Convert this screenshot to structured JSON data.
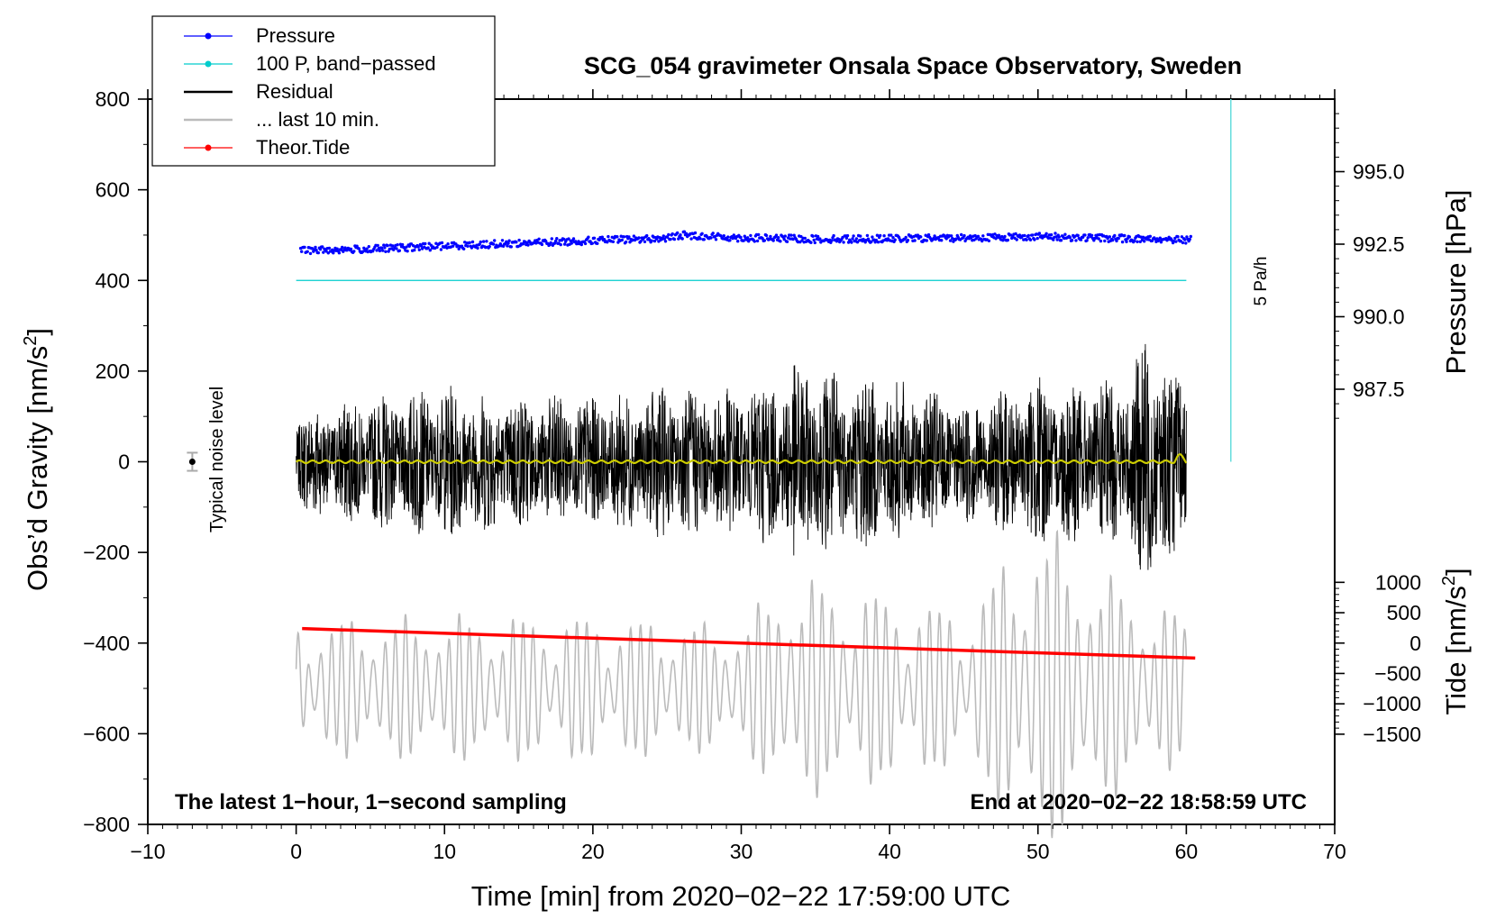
{
  "chart_data": {
    "type": "line",
    "title": "SCG_054 gravimeter Onsala Space Observatory, Sweden",
    "xlabel": "Time [min] from 2020−02−22 17:59:00 UTC",
    "ylabel_left": "Obs’d Gravity [nm/s",
    "ylabel_left_sup": "2",
    "ylabel_left_end": "]",
    "ylabel_right_pressure": "Pressure [hPa]",
    "ylabel_right_tide": "Tide [nm/s",
    "ylabel_right_tide_sup": "2",
    "ylabel_right_tide_end": "]",
    "xlim": [
      -10,
      70
    ],
    "ylim": [
      -800,
      800
    ],
    "pressure_axis": {
      "ticks": [
        987.5,
        990.0,
        992.5,
        995.0
      ],
      "tick_labels": [
        "987.5",
        "990.0",
        "992.5",
        "995.0"
      ]
    },
    "tide_axis": {
      "ticks": [
        -1500,
        -1000,
        -500,
        0,
        500,
        1000
      ],
      "tick_labels": [
        "−1500",
        "−1000",
        "−500",
        "0",
        "500",
        "1000"
      ]
    },
    "x_ticks": [
      -10,
      0,
      10,
      20,
      30,
      40,
      50,
      60,
      70
    ],
    "x_tick_labels": [
      "−10",
      "0",
      "10",
      "20",
      "30",
      "40",
      "50",
      "60",
      "70"
    ],
    "y_ticks": [
      -800,
      -600,
      -400,
      -200,
      0,
      200,
      400,
      600,
      800
    ],
    "y_tick_labels": [
      "−800",
      "−600",
      "−400",
      "−200",
      "0",
      "200",
      "400",
      "600",
      "800"
    ],
    "legend": [
      {
        "label": "Pressure",
        "color": "#0000ff",
        "marker": true
      },
      {
        "label": "100 P, band−passed",
        "color": "#00cccc",
        "marker": true
      },
      {
        "label": "Residual",
        "color": "#000000",
        "marker": false
      },
      {
        "label": "... last 10 min.",
        "color": "#bbbbbb",
        "marker": false
      },
      {
        "label": "Theor.Tide",
        "color": "#ff0000",
        "marker": true
      }
    ],
    "legend_position": "top-left",
    "series": [
      {
        "name": "Pressure (plotted, gravity units)",
        "color": "#0000ff",
        "x": [
          0,
          5,
          10,
          15,
          20,
          25,
          26,
          30,
          35,
          40,
          45,
          50,
          55,
          60
        ],
        "values": [
          466,
          469,
          476,
          482,
          488,
          493,
          500,
          494,
          491,
          492,
          494,
          497,
          493,
          490
        ]
      },
      {
        "name": "100 P, band-passed",
        "color": "#00cccc",
        "x": [
          0,
          60
        ],
        "values": [
          400,
          400
        ]
      },
      {
        "name": "Residual envelope",
        "color": "#000000",
        "x": [
          0,
          5,
          10,
          15,
          20,
          25,
          30,
          34,
          40,
          45,
          50,
          55,
          58,
          60
        ],
        "amplitude": [
          130,
          160,
          190,
          170,
          160,
          190,
          180,
          250,
          210,
          150,
          210,
          200,
          330,
          160
        ],
        "center": 0
      },
      {
        "name": "Band-passed residual",
        "color": "#cccc00",
        "x": [
          0,
          60
        ],
        "values": [
          0,
          0
        ]
      },
      {
        "name": "... last 10 min.",
        "color": "#bbbbbb",
        "x": [
          0,
          10,
          20,
          30,
          33,
          40,
          45,
          50,
          55,
          60
        ],
        "amplitude": [
          130,
          140,
          140,
          120,
          220,
          180,
          150,
          320,
          210,
          140
        ],
        "center": -500
      },
      {
        "name": "Theor.Tide",
        "color": "#ff0000",
        "x": [
          0,
          60
        ],
        "values": [
          -368,
          -433
        ]
      }
    ],
    "annotations": {
      "noise_label": "Typical noise level",
      "noise_value": 0,
      "noise_error": 20,
      "noise_x": -7,
      "rate_label": "5 Pa/h",
      "rate_bar_x": 63,
      "rate_bar_range": [
        0,
        800
      ],
      "note_left": "The latest 1−hour, 1−second sampling",
      "note_right": "End at 2020−02−22 18:58:59 UTC"
    }
  }
}
